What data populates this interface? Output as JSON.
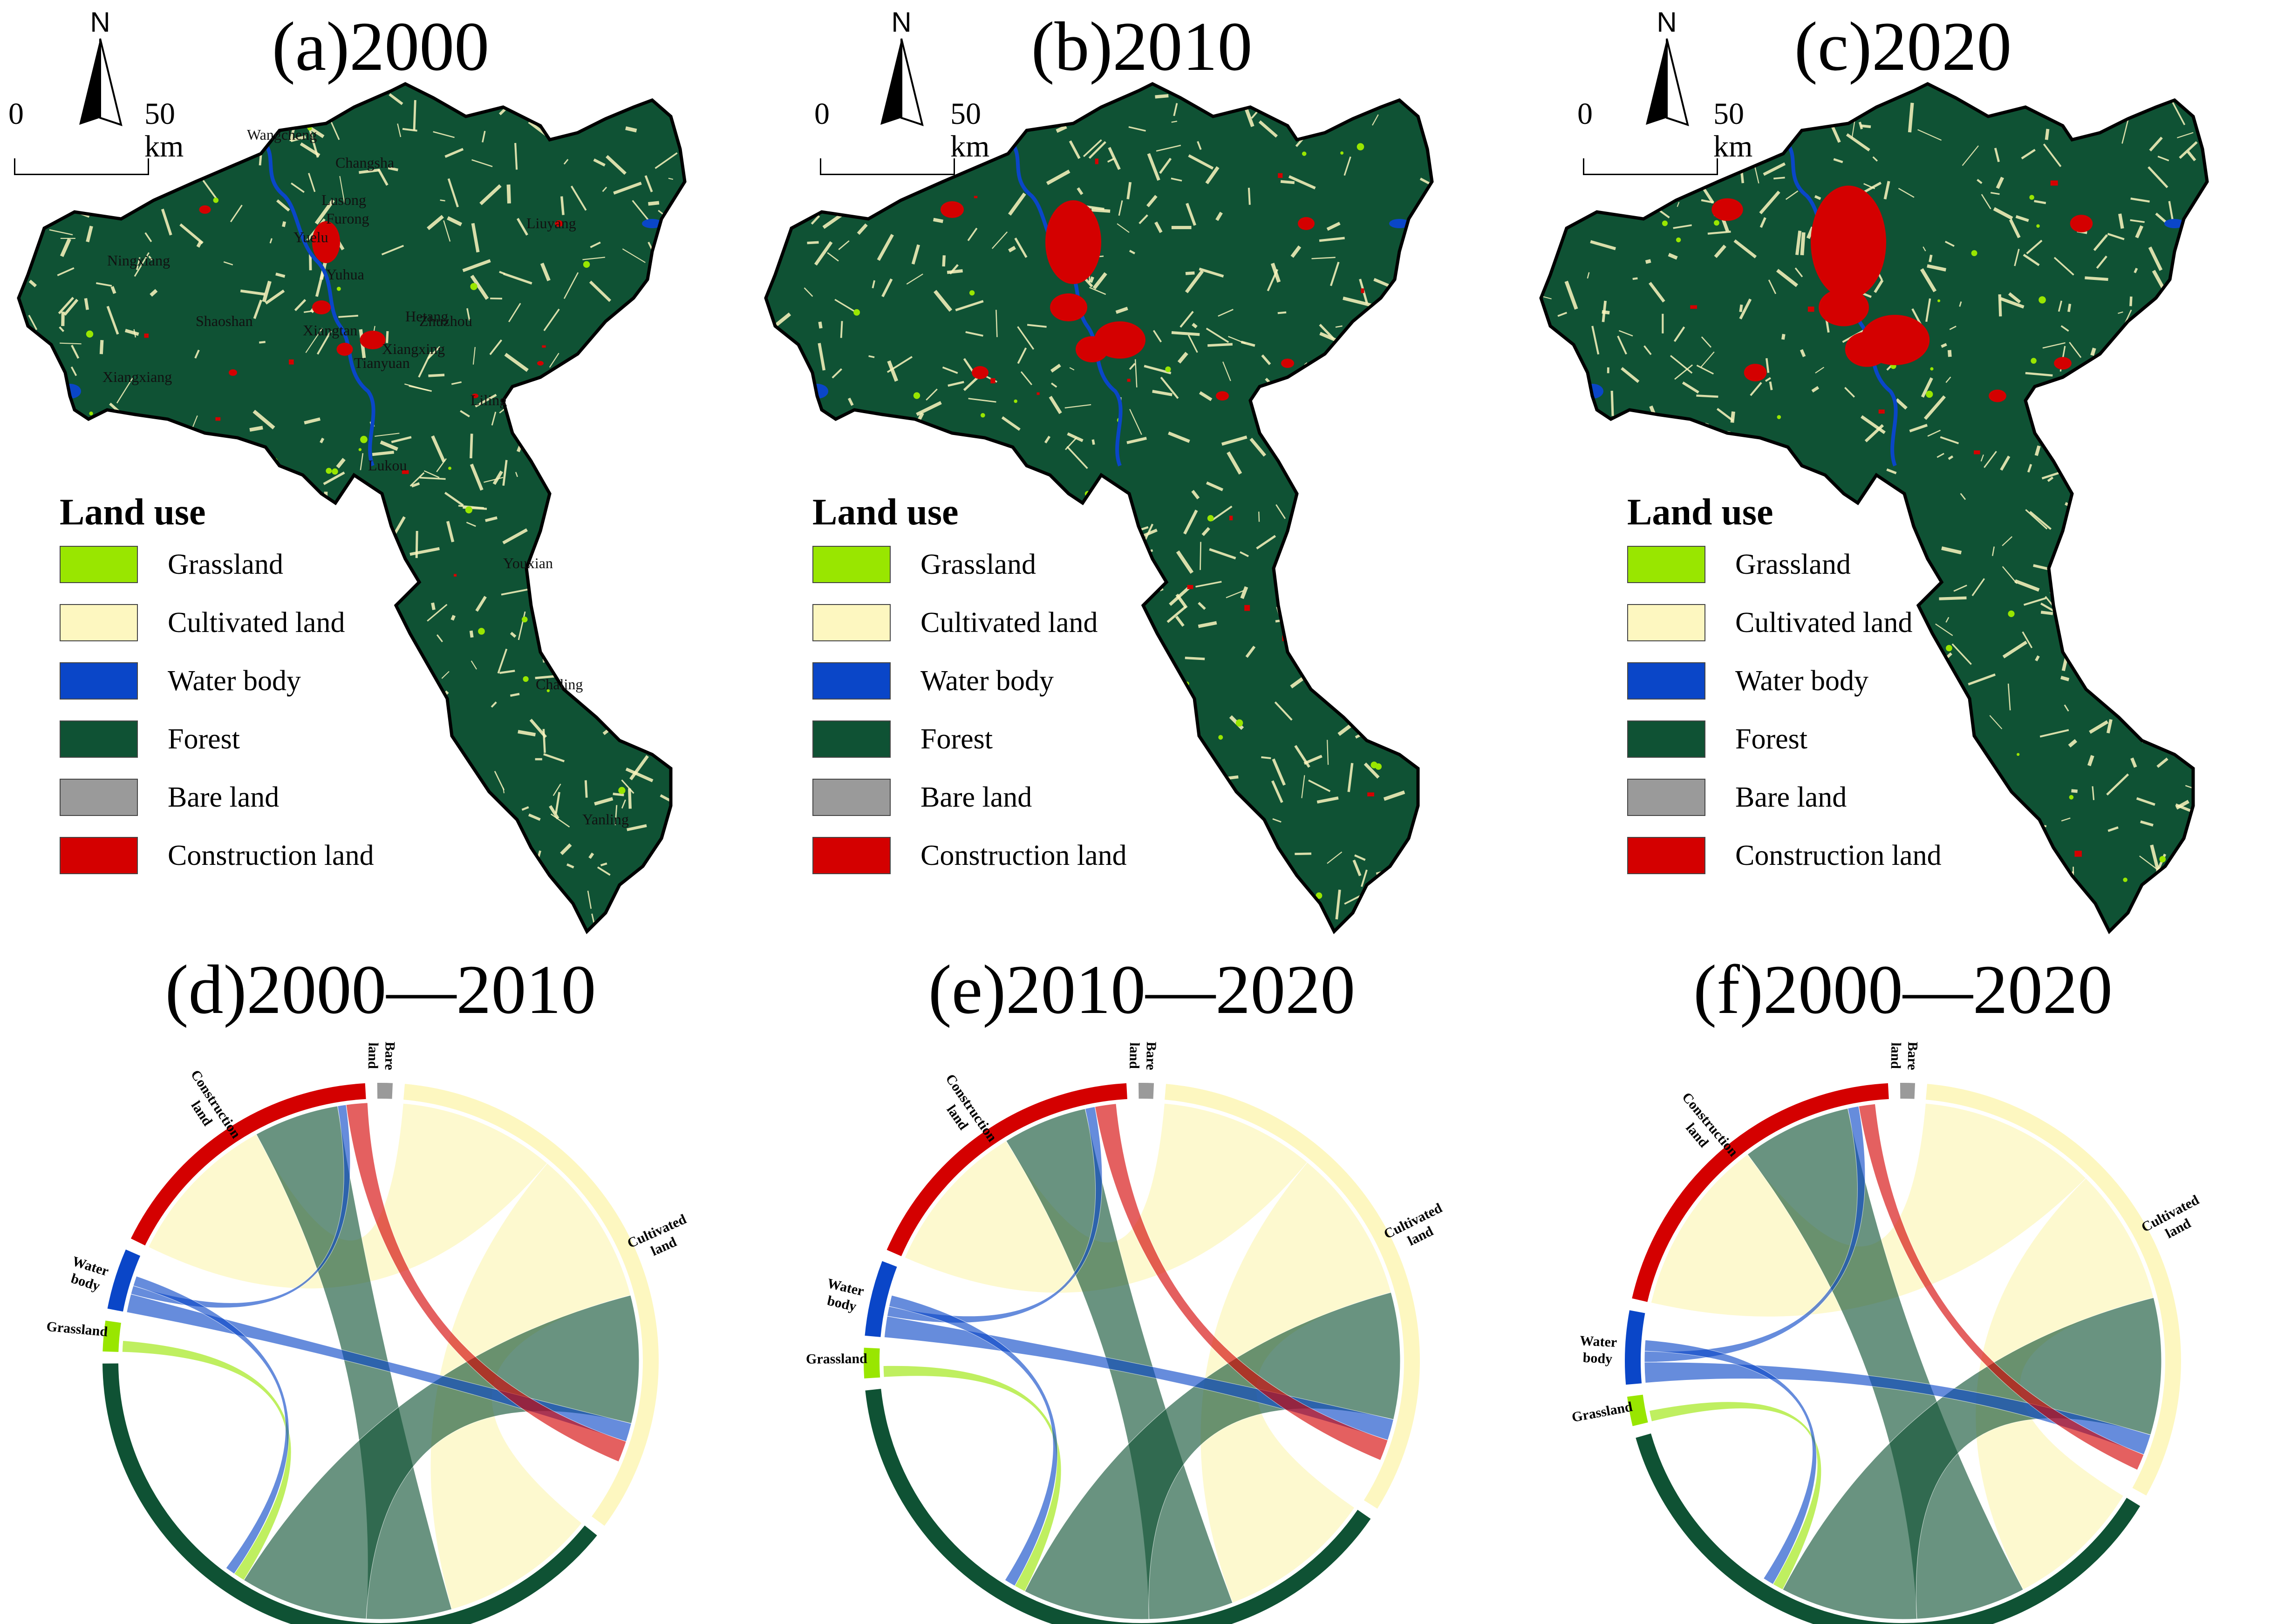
{
  "colors": {
    "grassland": "#99e600",
    "cultivated": "#fdf7c0",
    "water": "#0a46c8",
    "forest": "#0f5234",
    "bare": "#9a9a9a",
    "construction": "#d40000"
  },
  "legend": {
    "title": "Land use",
    "items": [
      {
        "key": "grassland",
        "label": "Grassland"
      },
      {
        "key": "cultivated",
        "label": "Cultivated land"
      },
      {
        "key": "water",
        "label": "Water body"
      },
      {
        "key": "forest",
        "label": "Forest"
      },
      {
        "key": "bare",
        "label": "Bare land"
      },
      {
        "key": "construction",
        "label": "Construction land"
      }
    ]
  },
  "north_label": "N",
  "scale": {
    "start": "0",
    "end": "50 km"
  },
  "maps": [
    {
      "title": "(a)2000",
      "year": "2000"
    },
    {
      "title": "(b)2010",
      "year": "2010"
    },
    {
      "title": "(c)2020",
      "year": "2020"
    }
  ],
  "place_names": [
    "Wangcheng",
    "Changsha",
    "Ningxiang",
    "Liuyang",
    "Yuelu",
    "Yuhua",
    "Xiangtan",
    "Zhuzhou",
    "Shaoshan",
    "Xiangxiang",
    "Liling",
    "Youxian",
    "Chaling",
    "Yanling",
    "Lukou",
    "Hetang",
    "Tianyuan",
    "Lusong",
    "Xiangxing",
    "Furong"
  ],
  "chord_data": [
    {
      "title": "(d)2000—2010",
      "type": "chord",
      "period": "2000-2010",
      "sectors": [
        {
          "key": "cultivated",
          "label": [
            "Cultivated",
            "land"
          ],
          "value": 38
        },
        {
          "key": "forest",
          "label": [
            "Forest"
          ],
          "value": 44
        },
        {
          "key": "grassland",
          "label": [
            "Grassland"
          ],
          "value": 2
        },
        {
          "key": "water",
          "label": [
            "Water",
            "body"
          ],
          "value": 4
        },
        {
          "key": "construction",
          "label": [
            "Construction",
            "land"
          ],
          "value": 19
        },
        {
          "key": "bare",
          "label": [
            "Bare",
            "land"
          ],
          "value": 1
        }
      ],
      "flows": [
        {
          "from": "cultivated",
          "to": "construction",
          "value": 11
        },
        {
          "from": "cultivated",
          "to": "forest",
          "value": 11
        },
        {
          "from": "forest",
          "to": "construction",
          "value": 6
        },
        {
          "from": "forest",
          "to": "cultivated",
          "value": 9
        },
        {
          "from": "water",
          "to": "cultivated",
          "value": 1.3
        },
        {
          "from": "water",
          "to": "construction",
          "value": 0.6
        },
        {
          "from": "construction",
          "to": "cultivated",
          "value": 1.5
        },
        {
          "from": "grassland",
          "to": "forest",
          "value": 0.8
        },
        {
          "from": "water",
          "to": "forest",
          "value": 0.7
        }
      ]
    },
    {
      "title": "(e)2010—2020",
      "type": "chord",
      "period": "2010-2020",
      "sectors": [
        {
          "key": "cultivated",
          "label": [
            "Cultivated",
            "land"
          ],
          "value": 37
        },
        {
          "key": "forest",
          "label": [
            "Forest"
          ],
          "value": 44
        },
        {
          "key": "grassland",
          "label": [
            "Grassland"
          ],
          "value": 2
        },
        {
          "key": "water",
          "label": [
            "Water",
            "body"
          ],
          "value": 5
        },
        {
          "key": "construction",
          "label": [
            "Construction",
            "land"
          ],
          "value": 20
        },
        {
          "key": "bare",
          "label": [
            "Bare",
            "land"
          ],
          "value": 1
        }
      ],
      "flows": [
        {
          "from": "cultivated",
          "to": "construction",
          "value": 11
        },
        {
          "from": "cultivated",
          "to": "forest",
          "value": 11
        },
        {
          "from": "forest",
          "to": "construction",
          "value": 6
        },
        {
          "from": "forest",
          "to": "cultivated",
          "value": 9
        },
        {
          "from": "water",
          "to": "cultivated",
          "value": 1.5
        },
        {
          "from": "water",
          "to": "construction",
          "value": 0.7
        },
        {
          "from": "construction",
          "to": "cultivated",
          "value": 1.5
        },
        {
          "from": "grassland",
          "to": "forest",
          "value": 0.8
        },
        {
          "from": "water",
          "to": "forest",
          "value": 0.8
        }
      ]
    },
    {
      "title": "(f)2000—2020",
      "type": "chord",
      "period": "2000-2020",
      "sectors": [
        {
          "key": "cultivated",
          "label": [
            "Cultivated",
            "land"
          ],
          "value": 37
        },
        {
          "key": "forest",
          "label": [
            "Forest"
          ],
          "value": 43
        },
        {
          "key": "grassland",
          "label": [
            "Grassland"
          ],
          "value": 2
        },
        {
          "key": "water",
          "label": [
            "Water",
            "body"
          ],
          "value": 5
        },
        {
          "key": "construction",
          "label": [
            "Construction",
            "land"
          ],
          "value": 24
        },
        {
          "key": "bare",
          "label": [
            "Bare",
            "land"
          ],
          "value": 1
        }
      ],
      "flows": [
        {
          "from": "cultivated",
          "to": "construction",
          "value": 13
        },
        {
          "from": "cultivated",
          "to": "forest",
          "value": 10
        },
        {
          "from": "forest",
          "to": "construction",
          "value": 8
        },
        {
          "from": "forest",
          "to": "cultivated",
          "value": 10
        },
        {
          "from": "water",
          "to": "cultivated",
          "value": 1.5
        },
        {
          "from": "water",
          "to": "construction",
          "value": 0.8
        },
        {
          "from": "construction",
          "to": "cultivated",
          "value": 1.2
        },
        {
          "from": "grassland",
          "to": "forest",
          "value": 0.8
        },
        {
          "from": "water",
          "to": "forest",
          "value": 0.8
        }
      ]
    }
  ]
}
